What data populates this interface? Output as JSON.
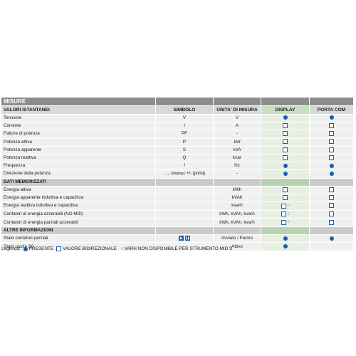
{
  "title": "MISURE",
  "headers": [
    "VALORI ISTANTANEI",
    "SIMBOLO",
    "UNITA' DI MISURA",
    "DISPLAY",
    "PORTA COM"
  ],
  "instant_rows": [
    {
      "label": "Tensione",
      "symbol": "V",
      "unit": "V",
      "display": "dot",
      "com": "dot"
    },
    {
      "label": "Corrente",
      "symbol": "I",
      "unit": "A",
      "display": "box",
      "com": "box"
    },
    {
      "label": "Fattore di potenza",
      "symbol": "PF",
      "unit": "-",
      "display": "box",
      "com": "box"
    },
    {
      "label": "Potenza attiva",
      "symbol": "P",
      "unit": "kW",
      "display": "box",
      "com": "box"
    },
    {
      "label": "Potenza apparente",
      "symbol": "S",
      "unit": "kVA",
      "display": "box",
      "com": "box"
    },
    {
      "label": "Potenza reattiva",
      "symbol": "Q",
      "unit": "kvar",
      "display": "box",
      "com": "box"
    },
    {
      "label": "Frequenza",
      "symbol": "f",
      "unit": "Hz",
      "display": "dot",
      "com": "dot"
    }
  ],
  "direction_row": {
    "label": "Direzione della potenza",
    "symbol_display": "→←(display)",
    "symbol_com": "+/- (porta)",
    "unit": "-",
    "display": "dot",
    "com": "dot"
  },
  "section_stored": "DATI MEMORIZZATI",
  "stored_rows": [
    {
      "label": "Energia attiva",
      "symbol": "",
      "unit": "kWh",
      "display": "box",
      "com": "box"
    },
    {
      "label": "Energia apparente induttiva e capacitiva",
      "symbol": "",
      "unit": "kVAh",
      "display": "box",
      "com": "box"
    },
    {
      "label": "Energia reattiva induttiva e capacitiva",
      "symbol": "",
      "unit": "kvarh",
      "display": "box-nomid",
      "com": "box"
    },
    {
      "label": "Contatori di energia azzerabili (NO MID)",
      "symbol": "",
      "unit": "kWh, kVAh, kvarh",
      "display": "box-nomid",
      "com": "box"
    },
    {
      "label": "Contatori di energia parziali azzerabili",
      "symbol": "",
      "unit": "kWh, kVAh, kvarh",
      "display": "box-nomid",
      "com": "box"
    }
  ],
  "section_other": "ALTRE INFORMAZIONI",
  "other_rows": [
    {
      "label": "Stato contatori parziali",
      "symbol": "icons",
      "unit": "Avviato / Fermo",
      "display": "dot",
      "com": "dot"
    },
    {
      "label": "Stato uscita S0",
      "symbol": "",
      "unit": "Attivo",
      "display": "dot",
      "com": ""
    }
  ],
  "legend": {
    "label": "Legenda:",
    "present": "PRESENTE",
    "bidirectional": "VALORE BIDIREZIONALE",
    "no_mid": "VARH NON DISPONIBILE PER STRUMENTO MID S"
  },
  "colors": {
    "marker": "#1a5ea8",
    "display_column": "#e6efe2",
    "header_bar": "#8c8c8c"
  }
}
